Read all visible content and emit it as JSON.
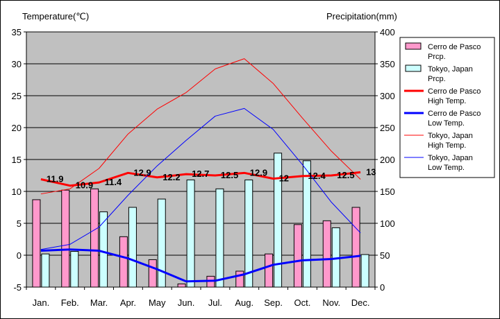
{
  "chart_data": {
    "type": "bar+line",
    "left_axis_title": "Temperature(℃)",
    "right_axis_title": "Precipitation(mm)",
    "categories": [
      "Jan.",
      "Feb.",
      "Mar.",
      "Apr.",
      "May",
      "Jun.",
      "Jul.",
      "Aug.",
      "Sep.",
      "Oct.",
      "Nov.",
      "Dec."
    ],
    "temp_axis": {
      "min": -5,
      "max": 35,
      "ticks": [
        -5,
        0,
        5,
        10,
        15,
        20,
        25,
        30,
        35
      ]
    },
    "precip_axis": {
      "min": 0,
      "max": 400,
      "ticks": [
        0,
        50,
        100,
        150,
        200,
        250,
        300,
        350,
        400
      ]
    },
    "plot_background": "#c0c0c0",
    "grid": true,
    "bar_series": [
      {
        "name": "Cerro de Pasco Prcp.",
        "color": "#ff99cc",
        "values": [
          137,
          152,
          154,
          79,
          43,
          5,
          17,
          25,
          52,
          98,
          104,
          125
        ]
      },
      {
        "name": "Tokyo, Japan Prcp.",
        "color": "#ccffff",
        "values": [
          52,
          56,
          118,
          125,
          138,
          168,
          154,
          168,
          210,
          198,
          93,
          51
        ]
      }
    ],
    "line_series": [
      {
        "name": "Cerro de Pasco High Temp.",
        "color": "#ff0000",
        "width": 3,
        "values": [
          11.9,
          10.9,
          11.4,
          12.9,
          12.2,
          12.7,
          12.5,
          12.9,
          12.0,
          12.4,
          12.5,
          13.0
        ]
      },
      {
        "name": "Cerro de Pasco Low Temp.",
        "color": "#0000ff",
        "width": 3,
        "values": [
          0.7,
          0.9,
          0.7,
          -0.5,
          -2.2,
          -4.1,
          -4.0,
          -3.0,
          -1.5,
          -0.8,
          -0.6,
          -0.1
        ]
      },
      {
        "name": "Tokyo, Japan High Temp.",
        "color": "#ff0000",
        "width": 1,
        "values": [
          9.6,
          10.4,
          13.6,
          19.0,
          22.9,
          25.5,
          29.2,
          30.8,
          26.9,
          21.5,
          16.3,
          11.9
        ]
      },
      {
        "name": "Tokyo, Japan Low Temp.",
        "color": "#0000ff",
        "width": 1,
        "values": [
          0.9,
          1.7,
          4.4,
          9.4,
          14.0,
          18.0,
          21.8,
          23.0,
          19.7,
          14.2,
          8.3,
          3.5
        ]
      }
    ],
    "data_labels": [
      "11.9",
      "10.9",
      "11.4",
      "12.9",
      "12.2",
      "12.7",
      "12.5",
      "12.9",
      "12",
      "12.4",
      "12.5",
      "13"
    ],
    "legend": {
      "placement": "right",
      "entries": [
        {
          "line1": "Cerro de Pasco",
          "line2": "Prcp."
        },
        {
          "line1": "Tokyo, Japan",
          "line2": "Prcp."
        },
        {
          "line1": "Cerro de Pasco",
          "line2": "High Temp."
        },
        {
          "line1": "Cerro de Pasco",
          "line2": "Low Temp."
        },
        {
          "line1": "Tokyo, Japan",
          "line2": "High Temp."
        },
        {
          "line1": "Tokyo, Japan",
          "line2": "Low Temp."
        }
      ]
    }
  }
}
